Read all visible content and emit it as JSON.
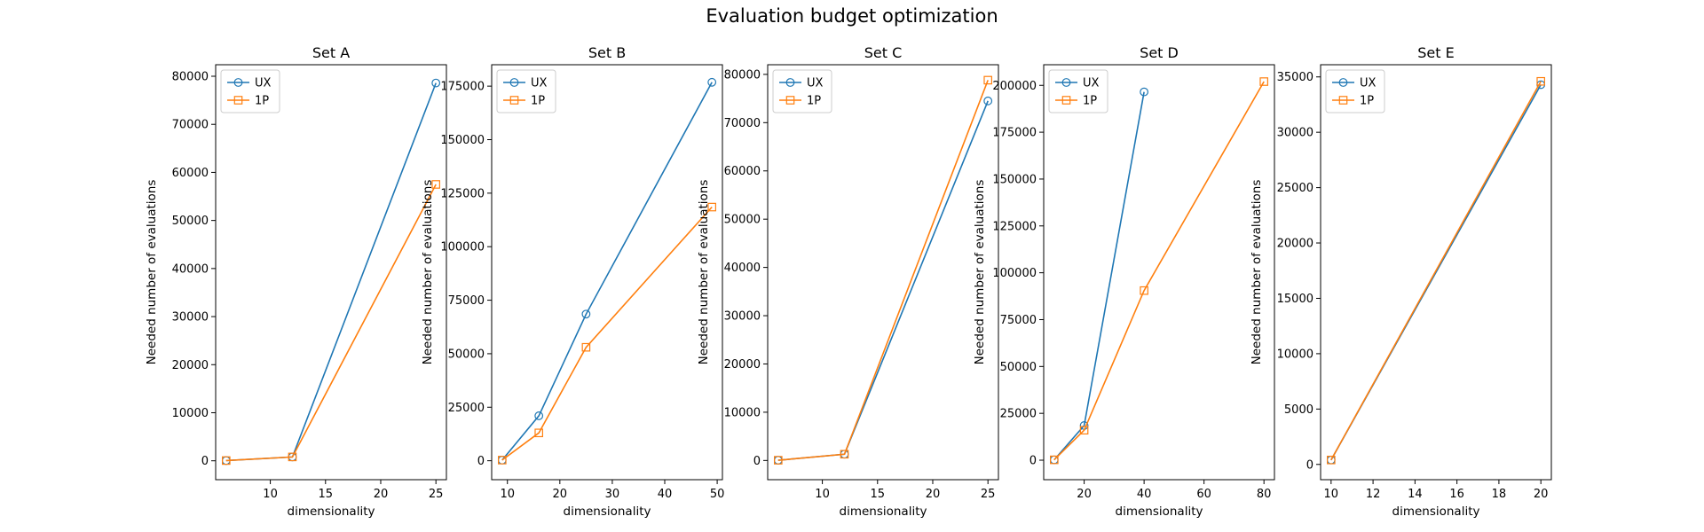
{
  "figure": {
    "title": "Evaluation budget optimization"
  },
  "colors": {
    "ux": "#1f77b4",
    "one_p": "#ff7f0e"
  },
  "chart_data": [
    {
      "type": "line",
      "title": "Set A",
      "xlabel": "dimensionality",
      "ylabel": "Needed number of evaluations",
      "xlim": [
        5.05,
        25.95
      ],
      "ylim": [
        -3930,
        82400
      ],
      "xticks": [
        10,
        15,
        20,
        25
      ],
      "yticks": [
        0,
        10000,
        20000,
        30000,
        40000,
        50000,
        60000,
        70000,
        80000
      ],
      "legend": "top-left",
      "series": [
        {
          "name": "UX",
          "marker": "circle",
          "color": "#1f77b4",
          "x": [
            6,
            12,
            25
          ],
          "y": [
            50,
            800,
            78600
          ]
        },
        {
          "name": "1P",
          "marker": "square",
          "color": "#ff7f0e",
          "x": [
            6,
            12,
            25
          ],
          "y": [
            50,
            800,
            57500
          ]
        }
      ]
    },
    {
      "type": "line",
      "title": "Set B",
      "xlabel": "dimensionality",
      "ylabel": "Needed number of evaluations",
      "xlim": [
        7,
        51
      ],
      "ylim": [
        -8850,
        185000
      ],
      "xticks": [
        10,
        20,
        30,
        40,
        50
      ],
      "yticks": [
        0,
        25000,
        50000,
        75000,
        100000,
        125000,
        150000,
        175000
      ],
      "legend": "top-left",
      "series": [
        {
          "name": "UX",
          "marker": "circle",
          "color": "#1f77b4",
          "x": [
            9,
            16,
            25,
            49
          ],
          "y": [
            300,
            21000,
            68500,
            176800
          ]
        },
        {
          "name": "1P",
          "marker": "square",
          "color": "#ff7f0e",
          "x": [
            9,
            16,
            25,
            49
          ],
          "y": [
            300,
            13000,
            53000,
            118500
          ]
        }
      ]
    },
    {
      "type": "line",
      "title": "Set C",
      "xlabel": "dimensionality",
      "ylabel": "Needed number of evaluations",
      "xlim": [
        5.05,
        25.95
      ],
      "ylim": [
        -3980,
        82000
      ],
      "xticks": [
        10,
        15,
        20,
        25
      ],
      "yticks": [
        0,
        10000,
        20000,
        30000,
        40000,
        50000,
        60000,
        70000,
        80000
      ],
      "legend": "top-left",
      "series": [
        {
          "name": "UX",
          "marker": "circle",
          "color": "#1f77b4",
          "x": [
            6,
            12,
            25
          ],
          "y": [
            50,
            1300,
            74500
          ]
        },
        {
          "name": "1P",
          "marker": "square",
          "color": "#ff7f0e",
          "x": [
            6,
            12,
            25
          ],
          "y": [
            50,
            1300,
            78800
          ]
        }
      ]
    },
    {
      "type": "line",
      "title": "Set D",
      "xlabel": "dimensionality",
      "ylabel": "Needed number of evaluations",
      "xlim": [
        6.5,
        83.5
      ],
      "ylim": [
        -10400,
        211000
      ],
      "xticks": [
        20,
        40,
        60,
        80
      ],
      "yticks": [
        0,
        25000,
        50000,
        75000,
        100000,
        125000,
        150000,
        175000,
        200000
      ],
      "legend": "top-left",
      "series": [
        {
          "name": "UX",
          "marker": "circle",
          "color": "#1f77b4",
          "x": [
            10,
            20,
            40
          ],
          "y": [
            200,
            18500,
            196500
          ]
        },
        {
          "name": "1P",
          "marker": "square",
          "color": "#ff7f0e",
          "x": [
            10,
            20,
            40,
            80
          ],
          "y": [
            200,
            16000,
            90500,
            202000
          ]
        }
      ]
    },
    {
      "type": "line",
      "title": "Set E",
      "xlabel": "dimensionality",
      "ylabel": "Needed number of evaluations",
      "xlim": [
        9.5,
        20.5
      ],
      "ylim": [
        -1380,
        36100
      ],
      "xticks": [
        10,
        12,
        14,
        16,
        18,
        20
      ],
      "yticks": [
        0,
        5000,
        10000,
        15000,
        20000,
        25000,
        30000,
        35000
      ],
      "legend": "top-left",
      "series": [
        {
          "name": "UX",
          "marker": "circle",
          "color": "#1f77b4",
          "x": [
            10,
            20
          ],
          "y": [
            400,
            34300
          ]
        },
        {
          "name": "1P",
          "marker": "square",
          "color": "#ff7f0e",
          "x": [
            10,
            20
          ],
          "y": [
            400,
            34600
          ]
        }
      ]
    }
  ]
}
